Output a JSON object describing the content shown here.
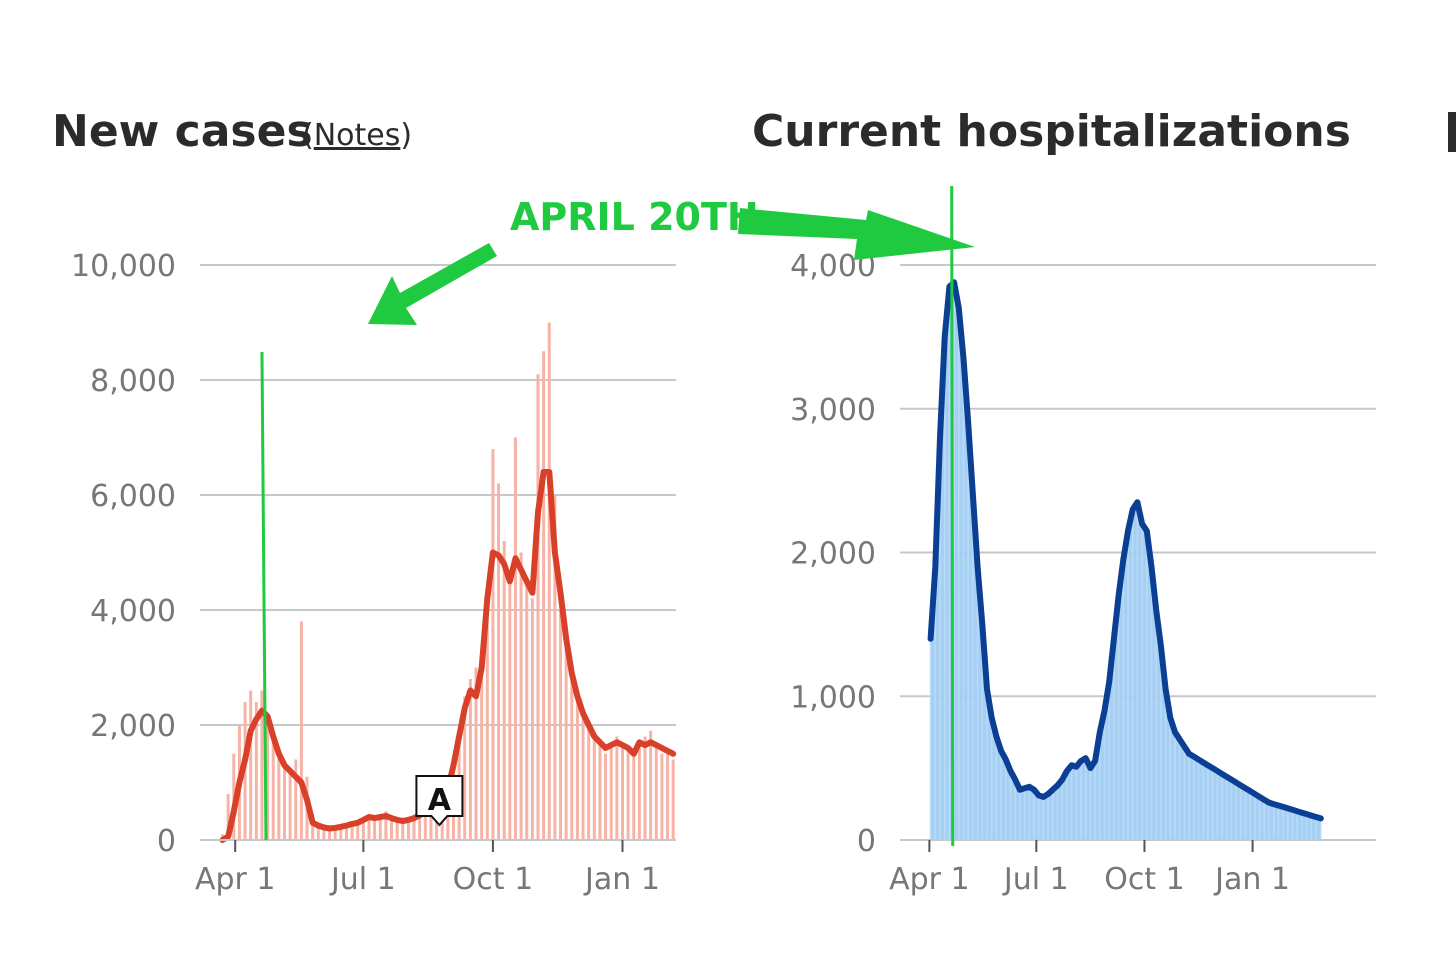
{
  "annotation": {
    "text": "APRIL 20TH",
    "color": "#1fc940"
  },
  "colors": {
    "cases_line": "#d9402a",
    "cases_bars": "#f6b3a6",
    "hosp_line": "#0b3f94",
    "hosp_fill": "#9ccaf3",
    "grid": "#c5c9cc",
    "tick_text": "#777777"
  },
  "chart_data": [
    {
      "type": "line",
      "title": "New cases",
      "notes_label": "Notes",
      "x_tick_labels": [
        "Apr 1",
        "Jul 1",
        "Oct 1",
        "Jan 1"
      ],
      "x_tick_days": [
        25,
        116,
        208,
        300
      ],
      "y_ticks": [
        0,
        2000,
        4000,
        6000,
        8000,
        10000
      ],
      "y_tick_labels": [
        "0",
        "2,000",
        "4,000",
        "6,000",
        "8,000",
        "10,000"
      ],
      "ylim": [
        0,
        10000
      ],
      "x_range_days": [
        0,
        338
      ],
      "grid": true,
      "event_marker": {
        "label": "A",
        "day": 170
      },
      "highlight_day": 44,
      "series": [
        {
          "kind": "daily_bars",
          "days": [
            16,
            20,
            24,
            28,
            32,
            36,
            40,
            44,
            48,
            52,
            56,
            60,
            64,
            68,
            72,
            76,
            80,
            84,
            88,
            92,
            96,
            100,
            104,
            108,
            112,
            116,
            120,
            124,
            128,
            132,
            136,
            140,
            144,
            148,
            152,
            156,
            160,
            164,
            168,
            172,
            176,
            180,
            184,
            188,
            192,
            196,
            200,
            204,
            208,
            212,
            216,
            220,
            224,
            228,
            232,
            236,
            240,
            244,
            248,
            252,
            256,
            260,
            264,
            268,
            272,
            276,
            280,
            284,
            288,
            292,
            296,
            300,
            304,
            308,
            312,
            316,
            320,
            324,
            328,
            332,
            336
          ],
          "values": [
            100,
            800,
            1500,
            2000,
            2400,
            2600,
            2400,
            2600,
            2100,
            1700,
            1500,
            1300,
            1200,
            1400,
            3800,
            1100,
            400,
            250,
            200,
            180,
            200,
            230,
            250,
            300,
            310,
            350,
            420,
            380,
            440,
            500,
            420,
            380,
            350,
            360,
            400,
            420,
            600,
            580,
            650,
            700,
            900,
            1400,
            1900,
            2500,
            2800,
            3000,
            3300,
            4300,
            6800,
            6200,
            5200,
            4600,
            7000,
            5000,
            4500,
            4200,
            8100,
            8500,
            9000,
            6000,
            4000,
            3500,
            2800,
            2400,
            2200,
            2000,
            1800,
            1700,
            1500,
            1600,
            1800,
            1700,
            1600,
            1500,
            1700,
            1800,
            1900,
            1600,
            1500,
            1600,
            1400
          ]
        },
        {
          "kind": "7-day average",
          "days": [
            16,
            20,
            24,
            28,
            32,
            36,
            40,
            44,
            48,
            52,
            56,
            60,
            64,
            68,
            72,
            76,
            80,
            84,
            88,
            92,
            96,
            100,
            104,
            108,
            112,
            116,
            120,
            124,
            128,
            132,
            136,
            140,
            144,
            148,
            152,
            156,
            160,
            164,
            168,
            172,
            176,
            180,
            184,
            188,
            192,
            196,
            200,
            204,
            208,
            212,
            216,
            220,
            224,
            228,
            232,
            236,
            240,
            244,
            248,
            252,
            256,
            260,
            264,
            268,
            272,
            276,
            280,
            284,
            288,
            292,
            296,
            300,
            304,
            308,
            312,
            316,
            320,
            324,
            328,
            332,
            336
          ],
          "values": [
            0,
            60,
            500,
            1000,
            1400,
            1900,
            2100,
            2250,
            2150,
            1800,
            1500,
            1300,
            1200,
            1100,
            1000,
            700,
            300,
            250,
            220,
            200,
            210,
            230,
            250,
            280,
            300,
            350,
            400,
            380,
            400,
            420,
            380,
            350,
            330,
            350,
            380,
            430,
            550,
            600,
            620,
            700,
            900,
            1300,
            1800,
            2300,
            2600,
            2500,
            3000,
            4200,
            5000,
            4950,
            4800,
            4500,
            4900,
            4700,
            4500,
            4300,
            5700,
            6400,
            6400,
            5000,
            4300,
            3500,
            2900,
            2500,
            2200,
            2000,
            1800,
            1700,
            1600,
            1650,
            1700,
            1650,
            1600,
            1500,
            1700,
            1650,
            1700,
            1650,
            1600,
            1550,
            1500
          ]
        }
      ]
    },
    {
      "type": "area",
      "title": "Current hospitalizations",
      "x_tick_labels": [
        "Apr 1",
        "Jul 1",
        "Oct 1",
        "Jan 1"
      ],
      "x_tick_days": [
        25,
        116,
        208,
        300
      ],
      "y_ticks": [
        0,
        1000,
        2000,
        3000,
        4000
      ],
      "y_tick_labels": [
        "0",
        "1,000",
        "2,000",
        "3,000",
        "4,000"
      ],
      "ylim": [
        0,
        4000
      ],
      "x_range_days": [
        0,
        405
      ],
      "grid": true,
      "highlight_day": 44,
      "series": [
        {
          "kind": "current",
          "days": [
            26,
            30,
            34,
            38,
            42,
            46,
            50,
            54,
            58,
            62,
            66,
            70,
            74,
            78,
            82,
            86,
            90,
            94,
            98,
            102,
            106,
            110,
            114,
            118,
            122,
            126,
            130,
            134,
            138,
            142,
            146,
            150,
            154,
            158,
            162,
            166,
            170,
            174,
            178,
            182,
            186,
            190,
            194,
            198,
            202,
            206,
            210,
            214,
            218,
            222,
            226,
            230,
            234,
            238,
            242,
            246,
            250,
            254,
            258,
            262,
            266,
            270,
            274,
            278,
            282,
            286,
            290,
            294,
            298,
            302,
            306,
            310,
            314,
            318,
            322,
            326,
            330,
            334,
            338,
            342,
            346,
            350,
            354,
            358
          ],
          "values": [
            1400,
            1900,
            2800,
            3500,
            3850,
            3880,
            3700,
            3350,
            2900,
            2400,
            1900,
            1500,
            1050,
            850,
            720,
            620,
            560,
            480,
            420,
            350,
            360,
            370,
            350,
            310,
            300,
            320,
            350,
            380,
            420,
            480,
            520,
            510,
            550,
            570,
            500,
            550,
            750,
            900,
            1100,
            1400,
            1700,
            1950,
            2150,
            2300,
            2350,
            2200,
            2150,
            1900,
            1600,
            1350,
            1050,
            850,
            750,
            700,
            650,
            600,
            580,
            560,
            540,
            520,
            500,
            480,
            460,
            440,
            420,
            400,
            380,
            360,
            340,
            320,
            300,
            280,
            260,
            250,
            240,
            230,
            220,
            210,
            200,
            190,
            180,
            170,
            160,
            150
          ]
        }
      ]
    }
  ]
}
